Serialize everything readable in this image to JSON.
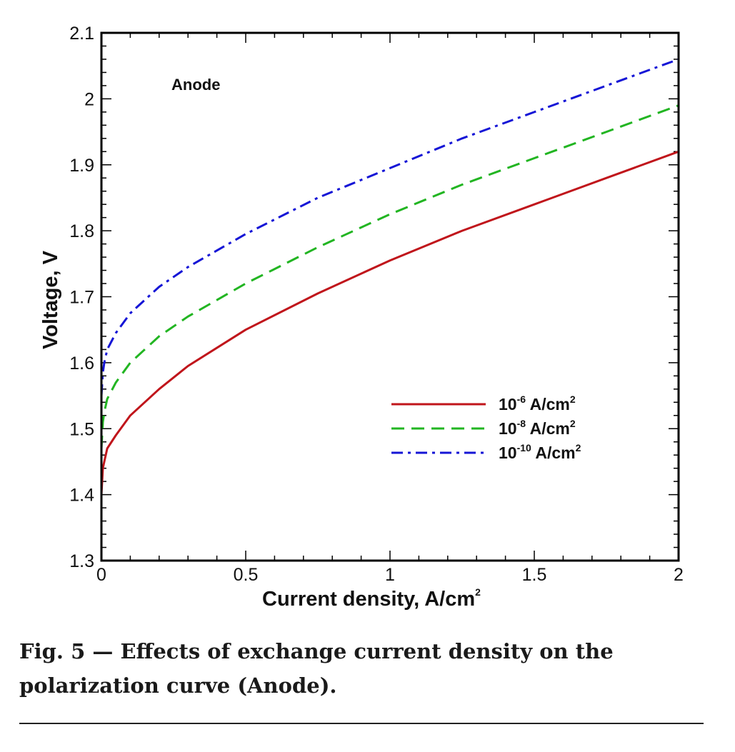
{
  "chart_data": {
    "type": "line",
    "annotation": "Anode",
    "xlabel_main": "Current density, A/cm",
    "xlabel_sup": "2",
    "ylabel": "Voltage, V",
    "xlim": [
      0,
      2
    ],
    "ylim": [
      1.3,
      2.1
    ],
    "xticks": [
      0,
      0.5,
      1,
      1.5,
      2
    ],
    "xtick_labels": [
      "0",
      "0.5",
      "1",
      "1.5",
      "2"
    ],
    "yticks": [
      1.3,
      1.4,
      1.5,
      1.6,
      1.7,
      1.8,
      1.9,
      2.0,
      2.1
    ],
    "ytick_labels": [
      "1.3",
      "1.4",
      "1.5",
      "1.6",
      "1.7",
      "1.8",
      "1.9",
      "2",
      "2.1"
    ],
    "grid": false,
    "legend_position": "lower-right",
    "x": [
      0,
      0.005,
      0.01,
      0.02,
      0.05,
      0.1,
      0.2,
      0.3,
      0.5,
      0.75,
      1.0,
      1.25,
      1.5,
      1.75,
      2.0
    ],
    "series": [
      {
        "name_base": "10",
        "name_exp": "-6",
        "name_unit": "A/cm",
        "name_unit_sup": "2",
        "color": "#c0151b",
        "dash": "solid",
        "values": [
          1.4,
          1.44,
          1.45,
          1.47,
          1.49,
          1.52,
          1.56,
          1.595,
          1.65,
          1.705,
          1.755,
          1.8,
          1.84,
          1.88,
          1.92
        ]
      },
      {
        "name_base": "10",
        "name_exp": "-8",
        "name_unit": "A/cm",
        "name_unit_sup": "2",
        "color": "#22b522",
        "dash": "dashed",
        "values": [
          1.47,
          1.51,
          1.525,
          1.545,
          1.57,
          1.6,
          1.64,
          1.67,
          1.72,
          1.775,
          1.825,
          1.87,
          1.91,
          1.95,
          1.99
        ]
      },
      {
        "name_base": "10",
        "name_exp": "-10",
        "name_unit": "A/cm",
        "name_unit_sup": "2",
        "color": "#1515d6",
        "dash": "dashdot",
        "values": [
          1.55,
          1.585,
          1.6,
          1.62,
          1.645,
          1.675,
          1.715,
          1.745,
          1.795,
          1.85,
          1.895,
          1.94,
          1.98,
          2.02,
          2.06
        ]
      }
    ]
  },
  "caption": {
    "line1": "Fig. 5 — Effects of exchange current density on the",
    "line2": "polarization curve (Anode)."
  }
}
